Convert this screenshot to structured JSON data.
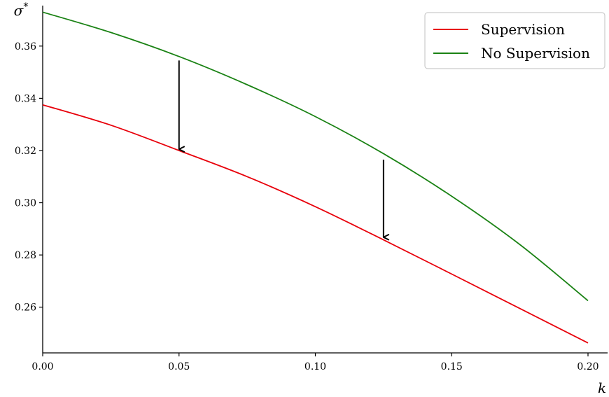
{
  "chart_data": {
    "type": "line",
    "title": "",
    "xlabel": "k",
    "ylabel": "σ*",
    "xlim": [
      0.0,
      0.2
    ],
    "ylim": [
      0.2425,
      0.3755
    ],
    "grid": false,
    "legend_position": "top-right",
    "x_ticks": [
      0.0,
      0.05,
      0.1,
      0.15,
      0.2
    ],
    "x_tick_labels": [
      "0.00",
      "0.05",
      "0.10",
      "0.15",
      "0.20"
    ],
    "y_ticks": [
      0.26,
      0.28,
      0.3,
      0.32,
      0.34,
      0.36
    ],
    "y_tick_labels": [
      "0.26",
      "0.28",
      "0.30",
      "0.32",
      "0.34",
      "0.36"
    ],
    "series": [
      {
        "name": "Supervision",
        "color": "#e8000b",
        "x": [
          0.0,
          0.025,
          0.05,
          0.075,
          0.1,
          0.125,
          0.15,
          0.175,
          0.2
        ],
        "y": [
          0.3375,
          0.3297,
          0.32,
          0.31,
          0.2985,
          0.2858,
          0.2727,
          0.2595,
          0.2463
        ]
      },
      {
        "name": "No Supervision",
        "color": "#1a8214",
        "x": [
          0.0,
          0.025,
          0.05,
          0.075,
          0.1,
          0.125,
          0.15,
          0.175,
          0.2
        ],
        "y": [
          0.373,
          0.3652,
          0.356,
          0.3452,
          0.333,
          0.3188,
          0.3025,
          0.284,
          0.2625
        ]
      }
    ],
    "annotations": [
      {
        "type": "arrow",
        "x": 0.05,
        "y_from": 0.3545,
        "y_to": 0.3205
      },
      {
        "type": "arrow",
        "x": 0.125,
        "y_from": 0.3165,
        "y_to": 0.2868
      }
    ]
  }
}
